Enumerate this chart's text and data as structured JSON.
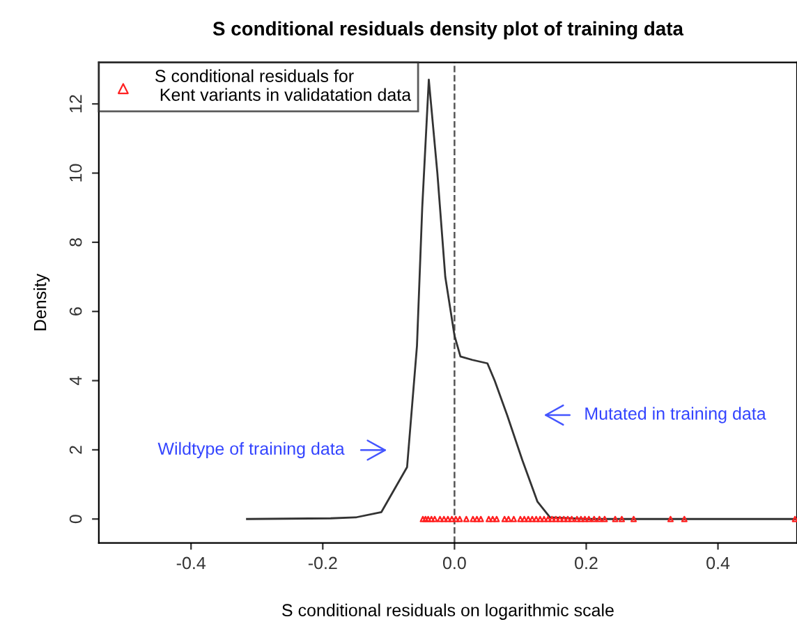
{
  "chart_data": {
    "type": "line",
    "title": "S conditional residuals density plot of training data",
    "xlabel": "S conditional residuals on logarithmic scale",
    "ylabel": "Density",
    "series": [
      {
        "color": "#333333",
        "x": [
          -0.315,
          -0.188,
          -0.149,
          -0.111,
          -0.072,
          -0.057,
          -0.049,
          -0.039,
          -0.026,
          -0.014,
          0.0,
          0.009,
          0.027,
          0.05,
          0.061,
          0.08,
          0.103,
          0.126,
          0.145,
          0.2,
          0.3,
          0.4,
          0.52
        ],
        "values": [
          0,
          0.02,
          0.05,
          0.2,
          1.5,
          5,
          9,
          12.7,
          10,
          7,
          5.3,
          4.7,
          4.6,
          4.5,
          4.0,
          3.0,
          1.7,
          0.5,
          0.05,
          0,
          0,
          0,
          0
        ]
      },
      {
        "type": "scatter",
        "name": "S conditional residuals for\n Kent variants in validatation data",
        "color": "#ff2020",
        "marker": "triangle",
        "x": [
          -0.048,
          -0.044,
          -0.04,
          -0.035,
          -0.03,
          -0.022,
          -0.016,
          -0.01,
          -0.004,
          0.002,
          0.008,
          0.018,
          0.028,
          0.034,
          0.04,
          0.052,
          0.058,
          0.064,
          0.076,
          0.082,
          0.09,
          0.1,
          0.106,
          0.112,
          0.118,
          0.124,
          0.13,
          0.136,
          0.142,
          0.148,
          0.154,
          0.16,
          0.166,
          0.172,
          0.178,
          0.186,
          0.192,
          0.198,
          0.204,
          0.212,
          0.22,
          0.228,
          0.244,
          0.254,
          0.272,
          0.328,
          0.349,
          0.517
        ],
        "values": [
          0,
          0,
          0,
          0,
          0,
          0,
          0,
          0,
          0,
          0,
          0,
          0,
          0,
          0,
          0,
          0,
          0,
          0,
          0,
          0,
          0,
          0,
          0,
          0,
          0,
          0,
          0,
          0,
          0,
          0,
          0,
          0,
          0,
          0,
          0,
          0,
          0,
          0,
          0,
          0,
          0,
          0,
          0,
          0,
          0,
          0,
          0,
          0
        ]
      }
    ],
    "ref_lines": [
      {
        "axis": "x",
        "value": 0,
        "line_style": "dashed",
        "color": "#555555"
      }
    ],
    "annotations": [
      "Wildtype of training data",
      "Mutated in training data"
    ],
    "xlim": [
      -0.54,
      0.52
    ],
    "ylim": [
      -0.69,
      13.2
    ],
    "xticks": [
      -0.4,
      -0.2,
      {
        "value": 0,
        "label": "0.0"
      },
      0.2,
      0.4
    ],
    "yticks": [
      0,
      2,
      4,
      6,
      8,
      10,
      12
    ],
    "legend": "top left",
    "grid": false
  }
}
